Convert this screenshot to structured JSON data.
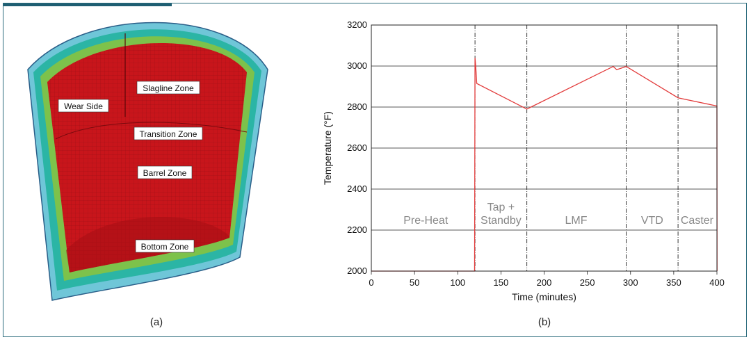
{
  "panel_a": {
    "caption": "(a)",
    "zone_labels": {
      "wear_side": "Wear Side",
      "slagline": "Slagline Zone",
      "transition": "Transition Zone",
      "barrel": "Barrel Zone",
      "bottom": "Bottom Zone"
    },
    "colors": {
      "interior": "#c8151b",
      "inner_layer": "#7dc24b",
      "middle_layer": "#2bb5a5",
      "outer_shell": "#6fc6d8",
      "shell_edge": "#2a5e88"
    }
  },
  "panel_b": {
    "caption": "(b)",
    "chart_data": {
      "type": "line",
      "xlabel": "Time (minutes)",
      "ylabel": "Temperature (°F)",
      "xlim": [
        0,
        400
      ],
      "ylim": [
        2000,
        3200
      ],
      "xticks": [
        0,
        50,
        100,
        150,
        200,
        250,
        300,
        350,
        400
      ],
      "yticks": [
        2000,
        2200,
        2400,
        2600,
        2800,
        3000,
        3200
      ],
      "grid": "horizontal",
      "line_color": "#e23a3a",
      "phase_boundaries": [
        120,
        180,
        295,
        355
      ],
      "phases": [
        {
          "label": "Pre-Heat",
          "x": 63
        },
        {
          "label": "Tap +",
          "label2": "Standby",
          "x": 150
        },
        {
          "label": "LMF",
          "x": 237
        },
        {
          "label": "VTD",
          "x": 325
        },
        {
          "label": "Caster",
          "x": 377
        }
      ],
      "series": [
        {
          "x": [
            0,
            119,
            119.5,
            120,
            121,
            122,
            180,
            280,
            284,
            295,
            355,
            400,
            400.2
          ],
          "y": [
            2000,
            2000,
            2000,
            3040,
            2990,
            2915,
            2790,
            2998,
            2982,
            2998,
            2845,
            2805,
            2000
          ]
        }
      ]
    }
  }
}
